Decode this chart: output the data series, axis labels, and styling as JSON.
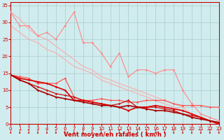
{
  "xlabel": "Vent moyen/en rafales ( km/h )",
  "bg_color": "#d0ecee",
  "grid_color": "#aacccc",
  "x": [
    0,
    1,
    2,
    3,
    4,
    5,
    6,
    7,
    8,
    9,
    10,
    11,
    12,
    13,
    14,
    15,
    16,
    17,
    18,
    19,
    20,
    21,
    22,
    23
  ],
  "lines": [
    {
      "y": [
        33,
        29,
        29,
        26,
        27,
        25,
        29,
        33,
        24,
        24,
        21,
        17,
        21,
        14,
        16,
        16,
        15,
        16,
        16,
        10,
        6,
        3,
        2,
        1
      ],
      "color": "#ff8888",
      "lw": 0.8,
      "marker": "D",
      "ms": 1.8,
      "zorder": 3
    },
    {
      "y": [
        33,
        31,
        28,
        26,
        25,
        23,
        21,
        19,
        17,
        16,
        14,
        13,
        12,
        11,
        10,
        9,
        8,
        7,
        6,
        5,
        3,
        2,
        1,
        0
      ],
      "color": "#ffaaaa",
      "lw": 0.8,
      "marker": null,
      "ms": 0,
      "zorder": 2
    },
    {
      "y": [
        29,
        27,
        25,
        24,
        22,
        21,
        19,
        17,
        16,
        15,
        13,
        12,
        11,
        10,
        9,
        8,
        7,
        6,
        5,
        4,
        3,
        2,
        1,
        0
      ],
      "color": "#ffaaaa",
      "lw": 0.8,
      "marker": null,
      "ms": 0,
      "zorder": 2
    },
    {
      "y": [
        14.5,
        14,
        13.5,
        12,
        12,
        12,
        13.5,
        8,
        7,
        7,
        7.5,
        7,
        7,
        6.5,
        6.5,
        7,
        7,
        7,
        6,
        5.5,
        5.5,
        5.5,
        5,
        5
      ],
      "color": "#ff5555",
      "lw": 0.9,
      "marker": "D",
      "ms": 1.8,
      "zorder": 4
    },
    {
      "y": [
        14.5,
        13.5,
        13,
        12.5,
        12,
        11,
        10,
        7,
        7,
        6.5,
        6,
        5.5,
        5,
        4,
        5,
        5,
        5.5,
        5,
        4.5,
        4,
        3,
        2,
        1,
        0
      ],
      "color": "#dd0000",
      "lw": 1.2,
      "marker": "D",
      "ms": 1.8,
      "zorder": 5
    },
    {
      "y": [
        14.5,
        13,
        12,
        11,
        10,
        9,
        8.5,
        8,
        7,
        6.5,
        6,
        5.5,
        6,
        7,
        5,
        5,
        5,
        4.5,
        4,
        3,
        2.5,
        2,
        1,
        0.5
      ],
      "color": "#cc1111",
      "lw": 0.9,
      "marker": "D",
      "ms": 1.8,
      "zorder": 4
    },
    {
      "y": [
        14.5,
        13,
        12,
        10,
        9,
        8,
        7.5,
        7,
        6.5,
        6,
        5.5,
        5.5,
        5,
        5.5,
        5,
        4.5,
        4,
        4,
        3.5,
        3,
        2,
        1.5,
        1,
        0.5
      ],
      "color": "#aa0000",
      "lw": 1.2,
      "marker": "D",
      "ms": 1.8,
      "zorder": 5
    }
  ],
  "xlim": [
    0,
    23
  ],
  "ylim": [
    0,
    36
  ],
  "yticks": [
    0,
    5,
    10,
    15,
    20,
    25,
    30,
    35
  ],
  "xticks": [
    0,
    1,
    2,
    3,
    4,
    5,
    6,
    7,
    8,
    9,
    10,
    11,
    12,
    13,
    14,
    15,
    16,
    17,
    18,
    19,
    20,
    21,
    22,
    23
  ],
  "tick_color": "#cc0000",
  "label_color": "#cc0000",
  "spine_color": "#cc0000",
  "xlabel_fontsize": 6.0,
  "tick_labelsize": 5.0
}
